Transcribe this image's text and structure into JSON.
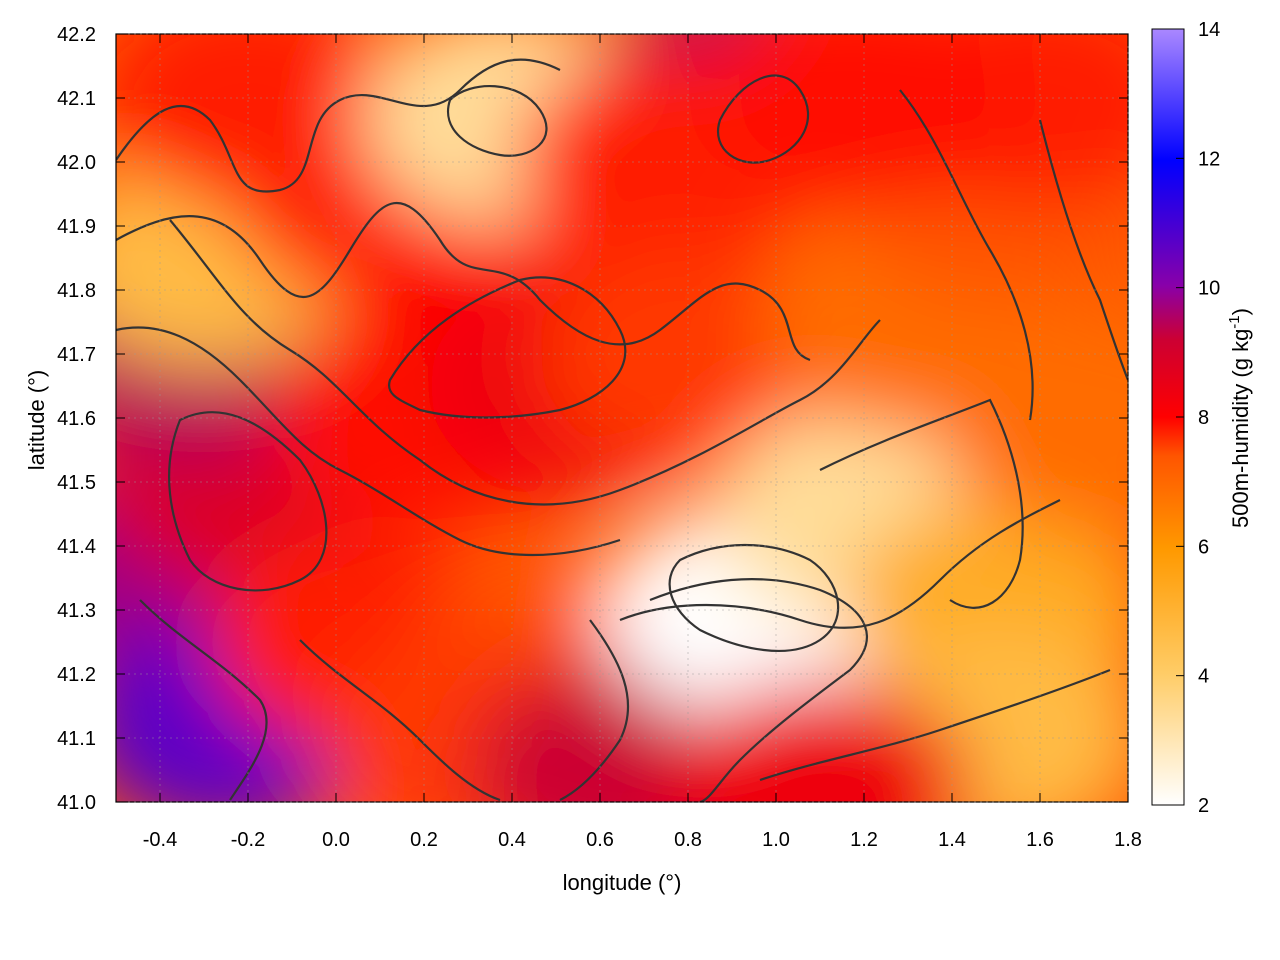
{
  "chart_data": {
    "type": "heatmap",
    "xlabel": "longitude (°)",
    "ylabel": "latitude (°)",
    "colorbar_label": "500m-humidity (g kg",
    "colorbar_label_sup": "-1",
    "colorbar_label_end": ")",
    "xlim": [
      -0.5,
      1.8
    ],
    "ylim": [
      41.0,
      42.2
    ],
    "clim": [
      2,
      14
    ],
    "x_ticks": [
      "-0.4",
      "-0.2",
      "0.0",
      "0.2",
      "0.4",
      "0.6",
      "0.8",
      "1.0",
      "1.2",
      "1.4",
      "1.6",
      "1.8"
    ],
    "y_ticks": [
      "41.0",
      "41.1",
      "41.2",
      "41.3",
      "41.4",
      "41.5",
      "41.6",
      "41.7",
      "41.8",
      "41.9",
      "42.0",
      "42.1",
      "42.2"
    ],
    "colorbar_ticks": [
      "2",
      "4",
      "6",
      "8",
      "10",
      "12",
      "14"
    ],
    "grid": true,
    "contours": true,
    "colormap": [
      "#ffffff",
      "#ffcc66",
      "#ff9900",
      "#ff5500",
      "#ff0000",
      "#cc0033",
      "#8800aa",
      "#0000ff",
      "#aa88ff"
    ],
    "regions": [
      {
        "x": -0.42,
        "y": 41.35,
        "value": 10.5
      },
      {
        "x": -0.25,
        "y": 41.12,
        "value": 11.5
      },
      {
        "x": -0.2,
        "y": 41.5,
        "value": 9.0
      },
      {
        "x": -0.35,
        "y": 41.7,
        "value": 10.0
      },
      {
        "x": -0.3,
        "y": 41.85,
        "value": 4.0
      },
      {
        "x": -0.2,
        "y": 42.1,
        "value": 7.5
      },
      {
        "x": 0.1,
        "y": 41.95,
        "value": 7.5
      },
      {
        "x": 0.2,
        "y": 41.6,
        "value": 7.8
      },
      {
        "x": 0.05,
        "y": 41.25,
        "value": 7.5
      },
      {
        "x": 0.45,
        "y": 41.8,
        "value": 8.0
      },
      {
        "x": 0.55,
        "y": 41.65,
        "value": 8.5
      },
      {
        "x": 0.4,
        "y": 42.07,
        "value": 3.0
      },
      {
        "x": 0.9,
        "y": 42.1,
        "value": 10.0
      },
      {
        "x": 0.75,
        "y": 42.0,
        "value": 7.5
      },
      {
        "x": 0.8,
        "y": 41.7,
        "value": 7.0
      },
      {
        "x": 0.5,
        "y": 41.2,
        "value": 6.5
      },
      {
        "x": 0.3,
        "y": 41.1,
        "value": 7.0
      },
      {
        "x": 0.65,
        "y": 41.05,
        "value": 9.5
      },
      {
        "x": 0.95,
        "y": 41.3,
        "value": 2.0
      },
      {
        "x": 1.2,
        "y": 41.45,
        "value": 3.0
      },
      {
        "x": 1.5,
        "y": 41.3,
        "value": 4.5
      },
      {
        "x": 1.5,
        "y": 41.1,
        "value": 4.0
      },
      {
        "x": 1.3,
        "y": 41.75,
        "value": 6.0
      },
      {
        "x": 1.5,
        "y": 41.95,
        "value": 6.5
      },
      {
        "x": 1.6,
        "y": 42.1,
        "value": 7.5
      },
      {
        "x": 1.2,
        "y": 42.1,
        "value": 7.8
      },
      {
        "x": 1.7,
        "y": 41.6,
        "value": 6.0
      },
      {
        "x": 1.1,
        "y": 41.02,
        "value": 8.5
      }
    ]
  }
}
